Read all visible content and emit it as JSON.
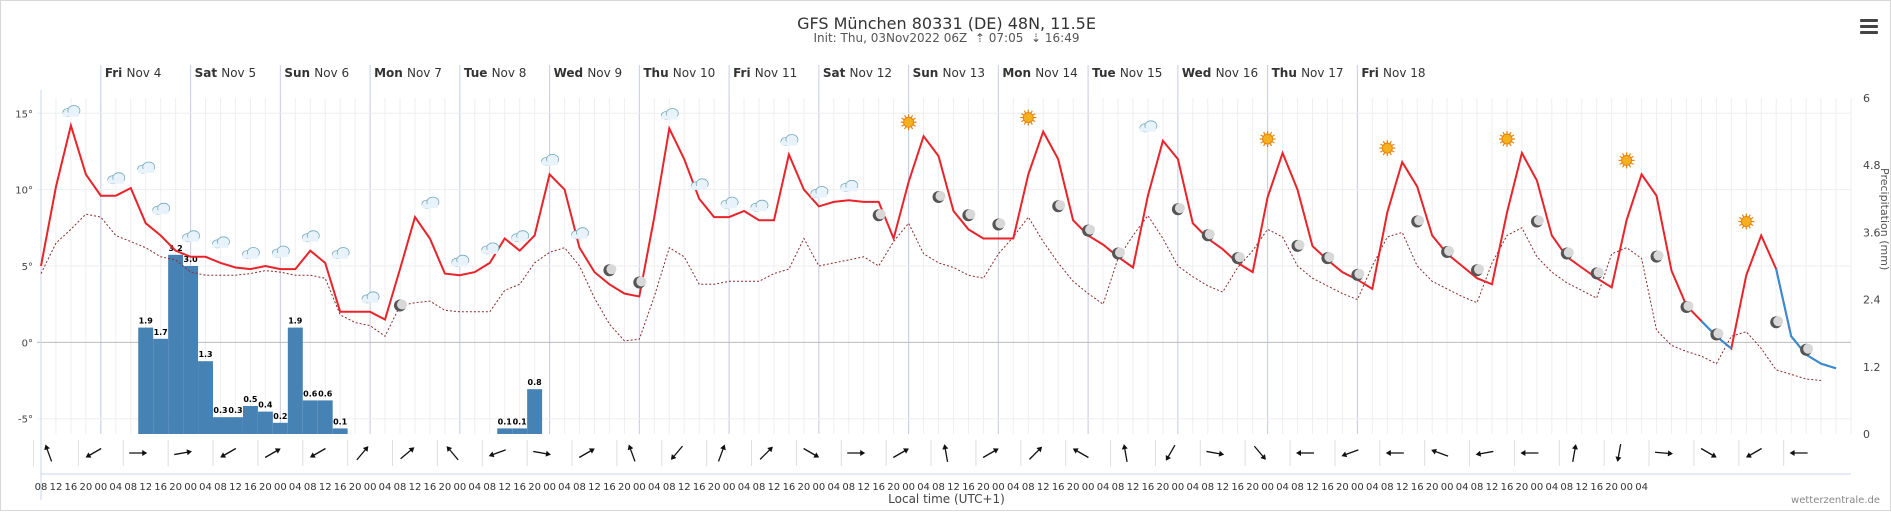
{
  "header": {
    "title": "GFS München 80331 (DE) 48N, 11.5E",
    "init_label": "Init: Thu, 03Nov2022 06Z",
    "sunrise": "07:05",
    "sunset": "16:49"
  },
  "footer": {
    "credit": "wetterzentrale.de"
  },
  "colors": {
    "temperature": "#e8232a",
    "temperature_below_zero": "#2f8fd8",
    "dewpoint": "#8b2b2b",
    "precipitation": "#4682b4"
  },
  "chart_data": {
    "type": "line",
    "xlabel": "Local time (UTC+1)",
    "ylabel_right": "Precipitation (mm)",
    "ylim_left": [
      -6,
      16
    ],
    "ylim_right": [
      0,
      6
    ],
    "yticks_left": [
      "15°",
      "10°",
      "5°",
      "0°",
      "-5°"
    ],
    "yticks_right": [
      "6",
      "4.8",
      "3.6",
      "2.4",
      "1.2",
      "0"
    ],
    "grid": true,
    "days": [
      {
        "wd": "Fri",
        "date": "Nov 4"
      },
      {
        "wd": "Sat",
        "date": "Nov 5"
      },
      {
        "wd": "Sun",
        "date": "Nov 6"
      },
      {
        "wd": "Mon",
        "date": "Nov 7"
      },
      {
        "wd": "Tue",
        "date": "Nov 8"
      },
      {
        "wd": "Wed",
        "date": "Nov 9"
      },
      {
        "wd": "Thu",
        "date": "Nov 10"
      },
      {
        "wd": "Fri",
        "date": "Nov 11"
      },
      {
        "wd": "Sat",
        "date": "Nov 12"
      },
      {
        "wd": "Sun",
        "date": "Nov 13"
      },
      {
        "wd": "Mon",
        "date": "Nov 14"
      },
      {
        "wd": "Tue",
        "date": "Nov 15"
      },
      {
        "wd": "Wed",
        "date": "Nov 16"
      },
      {
        "wd": "Thu",
        "date": "Nov 17"
      },
      {
        "wd": "Fri",
        "date": "Nov 18"
      }
    ],
    "hour_labels": [
      "08",
      "12",
      "16",
      "20",
      "00",
      "04",
      "08",
      "12",
      "16",
      "20",
      "00",
      "04",
      "08",
      "12",
      "16",
      "20",
      "00",
      "04",
      "08",
      "12",
      "16",
      "20",
      "00",
      "04",
      "08",
      "12",
      "16",
      "20",
      "00",
      "04",
      "08",
      "12",
      "16",
      "20",
      "00",
      "04",
      "08",
      "12",
      "16",
      "20",
      "00",
      "04",
      "08",
      "12",
      "16",
      "20",
      "00",
      "04",
      "08",
      "12",
      "16",
      "20",
      "00",
      "04",
      "08",
      "12",
      "16",
      "20",
      "00",
      "04",
      "08",
      "12",
      "16",
      "20",
      "00",
      "04",
      "08",
      "12",
      "16",
      "20",
      "00",
      "04",
      "08",
      "12",
      "16",
      "20",
      "00",
      "04",
      "08",
      "12",
      "16",
      "20",
      "00",
      "04",
      "08",
      "12",
      "16",
      "20",
      "00",
      "04",
      "08",
      "12",
      "16",
      "20",
      "00",
      "04",
      "08",
      "12",
      "16",
      "20",
      "00",
      "04",
      "08",
      "12",
      "16",
      "20",
      "00",
      "04"
    ],
    "temperature": [
      5,
      10.2,
      14.2,
      11,
      9.6,
      9.6,
      10.1,
      7.8,
      7,
      6,
      5.6,
      5.6,
      5.2,
      4.9,
      4.8,
      5,
      4.8,
      4.8,
      6,
      5.2,
      2,
      2,
      2,
      1.5,
      4.8,
      8.2,
      6.8,
      4.5,
      4.4,
      4.6,
      5.2,
      6.8,
      6,
      7,
      11,
      10,
      6.2,
      4.6,
      3.8,
      3.2,
      3,
      8.2,
      14,
      12,
      9.4,
      8.2,
      8.2,
      8.6,
      8,
      8,
      12.3,
      10,
      8.9,
      9.2,
      9.3,
      9.2,
      9.2,
      6.8,
      10.5,
      13.5,
      12.2,
      8.6,
      7.4,
      6.8,
      6.8,
      6.8,
      11,
      13.8,
      12,
      8,
      7,
      6.4,
      5.6,
      4.9,
      9.6,
      13.2,
      12,
      7.8,
      6.8,
      6.1,
      5.2,
      4.6,
      9.5,
      12.4,
      10,
      6.3,
      5.4,
      4.6,
      4.1,
      3.5,
      8.5,
      11.8,
      10.2,
      7,
      5.8,
      5,
      4.2,
      3.8,
      8.5,
      12.4,
      10.6,
      7,
      5.6,
      4.9,
      4.2,
      3.6,
      8,
      11,
      9.6,
      4.7,
      2.4,
      1.4,
      0.4,
      -0.4,
      4.4,
      7,
      4.8,
      0.4,
      -0.8,
      -1.4,
      -1.7
    ],
    "dewpoint": [
      4.5,
      6.5,
      7.4,
      8.4,
      8.2,
      7,
      6.6,
      6.2,
      5.6,
      5.4,
      4.6,
      4.4,
      4.4,
      4.4,
      4.5,
      4.7,
      4.6,
      4.4,
      4.4,
      4.2,
      1.8,
      1.3,
      1.1,
      0.4,
      2.4,
      2.6,
      2.7,
      2.1,
      2,
      2,
      2,
      3.4,
      3.8,
      5.2,
      5.9,
      6.2,
      5,
      2.9,
      1.2,
      0.1,
      0.2,
      3,
      6.2,
      5.6,
      3.8,
      3.8,
      4,
      4,
      4,
      4.5,
      4.8,
      6.8,
      5,
      5.2,
      5.4,
      5.6,
      5,
      6.6,
      7.8,
      5.8,
      5.2,
      4.9,
      4.4,
      4.2,
      5.8,
      6.9,
      8.2,
      6.6,
      5.2,
      4,
      3.2,
      2.5,
      5.5,
      7,
      8.3,
      6.8,
      5,
      4.3,
      3.7,
      3.3,
      4.9,
      6,
      7.4,
      6.9,
      5,
      4.2,
      3.7,
      3.2,
      2.8,
      5,
      6.9,
      7.2,
      5,
      4,
      3.5,
      3,
      2.6,
      5.2,
      7,
      7.5,
      5.6,
      4.6,
      3.9,
      3.4,
      2.9,
      5.8,
      6.2,
      5.5,
      0.8,
      -0.2,
      -0.6,
      -0.9,
      -1.4,
      0.4,
      0.7,
      -0.4,
      -1.8,
      -2.1,
      -2.4,
      -2.5
    ],
    "precip_bars": [
      {
        "i": 7,
        "v": 1.9,
        "label": "1.9"
      },
      {
        "i": 8,
        "v": 1.7,
        "label": "1.7"
      },
      {
        "i": 9,
        "v": 3.2,
        "label": "3.2"
      },
      {
        "i": 10,
        "v": 3.0,
        "label": "3.0"
      },
      {
        "i": 11,
        "v": 1.3,
        "label": "1.3"
      },
      {
        "i": 12,
        "v": 0.3,
        "label": "0.3"
      },
      {
        "i": 13,
        "v": 0.3,
        "label": "0.3"
      },
      {
        "i": 14,
        "v": 0.5,
        "label": "0.5"
      },
      {
        "i": 15,
        "v": 0.4,
        "label": "0.4"
      },
      {
        "i": 16,
        "v": 0.2,
        "label": "0.2"
      },
      {
        "i": 17,
        "v": 1.9,
        "label": "1.9"
      },
      {
        "i": 18,
        "v": 0.6,
        "label": "0.6"
      },
      {
        "i": 19,
        "v": 0.6,
        "label": "0.6"
      },
      {
        "i": 20,
        "v": 0.1,
        "label": "0.1"
      },
      {
        "i": 31,
        "v": 0.1,
        "label": "0.1"
      },
      {
        "i": 32,
        "v": 0.1,
        "label": "0.1"
      },
      {
        "i": 33,
        "v": 0.8,
        "label": "0.8"
      }
    ],
    "weather_icons": [
      {
        "i": 2,
        "t": 14.2,
        "k": "cloud"
      },
      {
        "i": 5,
        "t": 9.8,
        "k": "cloud"
      },
      {
        "i": 7,
        "t": 10.5,
        "k": "cloud"
      },
      {
        "i": 8,
        "t": 7.8,
        "k": "cloud"
      },
      {
        "i": 10,
        "t": 6,
        "k": "cloud"
      },
      {
        "i": 12,
        "t": 5.6,
        "k": "cloud"
      },
      {
        "i": 14,
        "t": 4.9,
        "k": "cloud"
      },
      {
        "i": 16,
        "t": 5,
        "k": "cloud"
      },
      {
        "i": 18,
        "t": 6,
        "k": "cloud"
      },
      {
        "i": 20,
        "t": 4.9,
        "k": "cloud"
      },
      {
        "i": 22,
        "t": 2,
        "k": "cloud"
      },
      {
        "i": 24,
        "t": 1.5,
        "k": "moon"
      },
      {
        "i": 26,
        "t": 8.2,
        "k": "cloud"
      },
      {
        "i": 28,
        "t": 4.4,
        "k": "cloud"
      },
      {
        "i": 30,
        "t": 5.2,
        "k": "cloud"
      },
      {
        "i": 32,
        "t": 6,
        "k": "cloud"
      },
      {
        "i": 34,
        "t": 11,
        "k": "cloud"
      },
      {
        "i": 36,
        "t": 6.2,
        "k": "cloud"
      },
      {
        "i": 38,
        "t": 3.8,
        "k": "moon"
      },
      {
        "i": 40,
        "t": 3,
        "k": "moon"
      },
      {
        "i": 42,
        "t": 14,
        "k": "cloud"
      },
      {
        "i": 44,
        "t": 9.4,
        "k": "cloud"
      },
      {
        "i": 46,
        "t": 8.2,
        "k": "cloud"
      },
      {
        "i": 48,
        "t": 8,
        "k": "cloud"
      },
      {
        "i": 50,
        "t": 12.3,
        "k": "cloud"
      },
      {
        "i": 52,
        "t": 8.9,
        "k": "cloud"
      },
      {
        "i": 54,
        "t": 9.3,
        "k": "cloud"
      },
      {
        "i": 56,
        "t": 7.4,
        "k": "moon"
      },
      {
        "i": 58,
        "t": 13.5,
        "k": "sun"
      },
      {
        "i": 60,
        "t": 8.6,
        "k": "moon"
      },
      {
        "i": 62,
        "t": 7.4,
        "k": "moon"
      },
      {
        "i": 64,
        "t": 6.8,
        "k": "moon"
      },
      {
        "i": 66,
        "t": 13.8,
        "k": "sun"
      },
      {
        "i": 68,
        "t": 8,
        "k": "moon"
      },
      {
        "i": 70,
        "t": 6.4,
        "k": "moon"
      },
      {
        "i": 72,
        "t": 4.9,
        "k": "moon"
      },
      {
        "i": 74,
        "t": 13.2,
        "k": "cloud"
      },
      {
        "i": 76,
        "t": 7.8,
        "k": "moon"
      },
      {
        "i": 78,
        "t": 6.1,
        "k": "moon"
      },
      {
        "i": 80,
        "t": 4.6,
        "k": "moon"
      },
      {
        "i": 82,
        "t": 12.4,
        "k": "sun"
      },
      {
        "i": 84,
        "t": 5.4,
        "k": "moon"
      },
      {
        "i": 86,
        "t": 4.6,
        "k": "moon"
      },
      {
        "i": 88,
        "t": 3.5,
        "k": "moon"
      },
      {
        "i": 90,
        "t": 11.8,
        "k": "sun"
      },
      {
        "i": 92,
        "t": 7,
        "k": "moon"
      },
      {
        "i": 94,
        "t": 5,
        "k": "moon"
      },
      {
        "i": 96,
        "t": 3.8,
        "k": "moon"
      },
      {
        "i": 98,
        "t": 12.4,
        "k": "sun"
      },
      {
        "i": 100,
        "t": 7,
        "k": "moon"
      },
      {
        "i": 102,
        "t": 4.9,
        "k": "moon"
      },
      {
        "i": 104,
        "t": 3.6,
        "k": "moon"
      },
      {
        "i": 106,
        "t": 11,
        "k": "sun"
      },
      {
        "i": 108,
        "t": 4.7,
        "k": "moon"
      },
      {
        "i": 110,
        "t": 1.4,
        "k": "moon"
      },
      {
        "i": 112,
        "t": -0.4,
        "k": "moon"
      },
      {
        "i": 114,
        "t": 7,
        "k": "sun"
      },
      {
        "i": 116,
        "t": 0.4,
        "k": "moon"
      },
      {
        "i": 118,
        "t": -1.4,
        "k": "moon"
      }
    ],
    "wind_directions_deg": [
      340,
      240,
      90,
      80,
      240,
      60,
      240,
      40,
      50,
      320,
      250,
      100,
      60,
      340,
      220,
      20,
      45,
      120,
      90,
      60,
      350,
      60,
      45,
      300,
      350,
      210,
      100,
      140,
      270,
      250,
      270,
      290,
      260,
      270,
      10,
      190,
      95,
      120,
      240,
      270
    ]
  }
}
